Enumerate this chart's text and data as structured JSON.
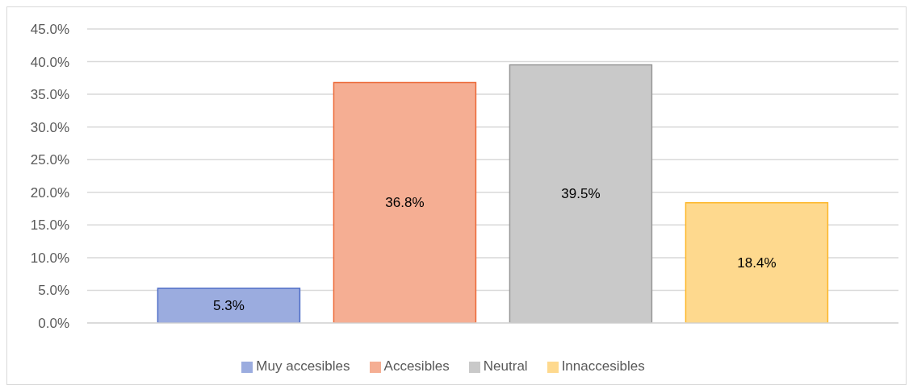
{
  "chart_data": {
    "type": "bar",
    "categories": [
      null
    ],
    "series": [
      {
        "name": "Muy accesibles",
        "color": "#9bacdf",
        "values": [
          5.3
        ],
        "value_labels": [
          "5.3%"
        ]
      },
      {
        "name": "Accesibles",
        "color": "#f5ae93",
        "values": [
          36.8
        ],
        "value_labels": [
          "36.8%"
        ]
      },
      {
        "name": "Neutral",
        "color": "#c9c9c9",
        "values": [
          39.5
        ],
        "value_labels": [
          "39.5%"
        ]
      },
      {
        "name": "Innaccesibles",
        "color": "#fed98e",
        "values": [
          18.4
        ],
        "value_labels": [
          "18.4%"
        ]
      }
    ],
    "ylim": [
      0,
      45
    ],
    "yticks": [
      {
        "value": 0,
        "label": "0.0%"
      },
      {
        "value": 5,
        "label": "5.0%"
      },
      {
        "value": 10,
        "label": "10.0%"
      },
      {
        "value": 15,
        "label": "15.0%"
      },
      {
        "value": 20,
        "label": "20.0%"
      },
      {
        "value": 25,
        "label": "25.0%"
      },
      {
        "value": 30,
        "label": "30.0%"
      },
      {
        "value": 35,
        "label": "35.0%"
      },
      {
        "value": 40,
        "label": "40.0%"
      },
      {
        "value": 45,
        "label": "45.0%"
      }
    ],
    "grid": "y",
    "legend": "bottom"
  }
}
